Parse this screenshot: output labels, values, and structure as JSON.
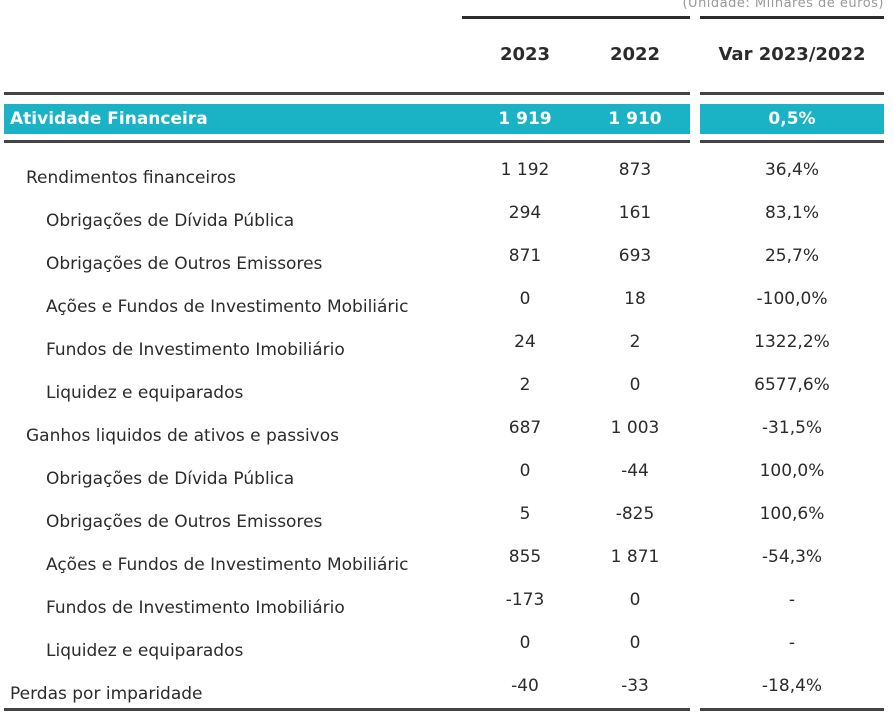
{
  "unit_note": "(Unidade: Milhares de euros)",
  "columns": [
    "2023",
    "2022",
    "Var 2023/2022"
  ],
  "total": {
    "label": "Atividade Financeira",
    "v2023": "1 919",
    "v2022": "1 910",
    "var": "0,5%"
  },
  "rows": [
    {
      "label": "Rendimentos financeiros",
      "v2023": "1 192",
      "v2022": "873",
      "var": "36,4%"
    },
    {
      "label": "Obrigações de Dívida Pública",
      "v2023": "294",
      "v2022": "161",
      "var": "83,1%"
    },
    {
      "label": "Obrigações de Outros Emissores",
      "v2023": "871",
      "v2022": "693",
      "var": "25,7%"
    },
    {
      "label": "Ações e Fundos de Investimento Mobiliáric",
      "v2023": "0",
      "v2022": "18",
      "var": "-100,0%"
    },
    {
      "label": "Fundos de Investimento Imobiliário",
      "v2023": "24",
      "v2022": "2",
      "var": "1322,2%"
    },
    {
      "label": "Liquidez e equiparados",
      "v2023": "2",
      "v2022": "0",
      "var": "6577,6%"
    },
    {
      "label": "Ganhos liquidos de ativos e passivos",
      "v2023": "687",
      "v2022": "1 003",
      "var": "-31,5%"
    },
    {
      "label": "Obrigações de Dívida Pública",
      "v2023": "0",
      "v2022": "-44",
      "var": "100,0%"
    },
    {
      "label": "Obrigações de Outros Emissores",
      "v2023": "5",
      "v2022": "-825",
      "var": "100,6%"
    },
    {
      "label": "Ações e Fundos de Investimento Mobiliáric",
      "v2023": "855",
      "v2022": "1 871",
      "var": "-54,3%"
    },
    {
      "label": "Fundos de Investimento Imobiliário",
      "v2023": "-173",
      "v2022": "0",
      "var": "-"
    },
    {
      "label": "Liquidez e equiparados",
      "v2023": "0",
      "v2022": "0",
      "var": "-"
    },
    {
      "label": "Perdas por imparidade",
      "v2023": "-40",
      "v2022": "-33",
      "var": "-18,4%"
    }
  ]
}
